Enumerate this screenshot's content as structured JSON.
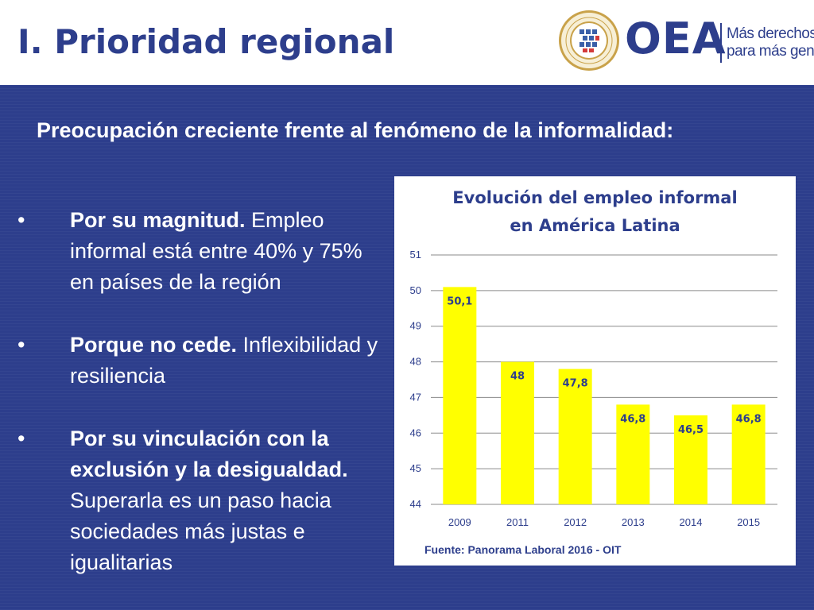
{
  "header": {
    "title": "I. Prioridad regional",
    "logo_text": "OEA",
    "tagline_line1": "Más derechos",
    "tagline_line2": "para más gente",
    "seal_text": "ORGANIZACION DE LOS ESTADOS AMERICANOS"
  },
  "subtitle": "Preocupación creciente frente al fenómeno de la informalidad:",
  "bullets": [
    {
      "marker": "•",
      "bold": "Por su magnitud.",
      "text": " Empleo informal está entre 40% y 75% en países de la región"
    },
    {
      "marker": "•",
      "bold": "Porque no cede.",
      "text": " Inflexibilidad y resiliencia"
    },
    {
      "marker": "•",
      "bold": "Por su vinculación con la exclusión y la desigualdad.",
      "text": " Superarla es un paso hacia sociedades más justas e igualitarias"
    }
  ],
  "chart_data": {
    "type": "bar",
    "title_line1": "Evolución del empleo informal",
    "title_line2": "en América Latina",
    "categories": [
      "2009",
      "2011",
      "2012",
      "2013",
      "2014",
      "2015"
    ],
    "values": [
      50.1,
      48,
      47.8,
      46.8,
      46.5,
      46.8
    ],
    "data_labels": [
      "50,1",
      "48",
      "47,8",
      "46,8",
      "46,5",
      "46,8"
    ],
    "ylim": [
      44,
      51
    ],
    "yticks": [
      44,
      45,
      46,
      47,
      48,
      49,
      50,
      51
    ],
    "grid": true,
    "bar_color": "#ffff00",
    "source": "Fuente: Panorama Laboral 2016 - OIT"
  },
  "colors": {
    "background": "#2d3e8c",
    "header_text": "#2d3e8c",
    "bar": "#ffff00"
  }
}
